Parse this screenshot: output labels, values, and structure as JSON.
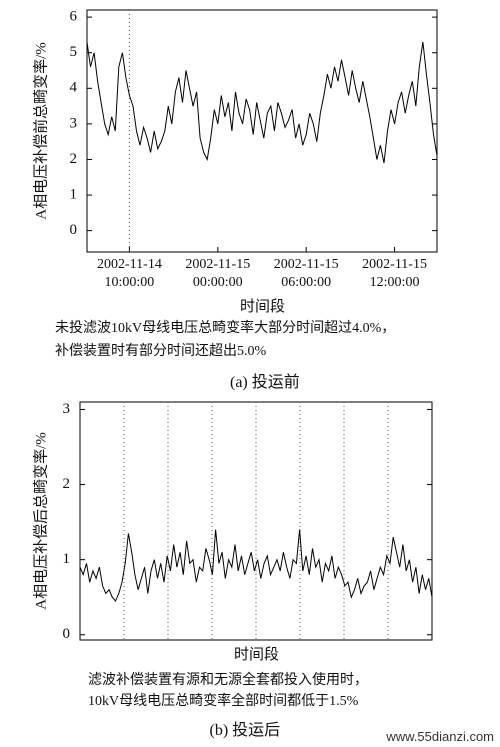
{
  "chart_data": [
    {
      "type": "line",
      "ylabel": "A相电压补偿前总畸变率/%",
      "xlabel": "时间段",
      "note": [
        "未投滤波10kV母线电压总畸变率大部分时间超过4.0%，",
        "补偿装置时有部分时间还超出5.0%"
      ],
      "caption": "(a) 投运前",
      "color": "#000000",
      "xlim": [
        0,
        99
      ],
      "ylim": [
        -0.6,
        6.2
      ],
      "yticks": [
        0,
        1,
        2,
        3,
        4,
        5,
        6
      ],
      "xticks": [
        {
          "value": 12,
          "label": "2002-11-14 10:00:00"
        },
        {
          "value": 37,
          "label": "2002-11-15 00:00:00"
        },
        {
          "value": 62,
          "label": "2002-11-15 06:00:00"
        },
        {
          "value": 87,
          "label": "2002-11-15 12:00:00"
        }
      ],
      "values": [
        5.3,
        4.6,
        5.0,
        4.2,
        3.6,
        3.0,
        2.7,
        3.2,
        2.8,
        4.6,
        5.0,
        4.3,
        3.8,
        3.5,
        2.8,
        2.4,
        2.9,
        2.6,
        2.2,
        2.8,
        2.3,
        2.5,
        2.8,
        3.5,
        3.0,
        3.9,
        4.3,
        3.6,
        4.5,
        4.0,
        3.5,
        3.9,
        2.6,
        2.2,
        2.0,
        2.6,
        3.4,
        3.0,
        3.8,
        3.2,
        3.6,
        2.8,
        3.9,
        3.3,
        3.0,
        3.7,
        3.4,
        2.7,
        3.6,
        3.1,
        2.6,
        3.3,
        3.5,
        2.8,
        3.6,
        3.3,
        2.9,
        3.1,
        3.4,
        2.6,
        3.0,
        2.4,
        2.7,
        3.3,
        3.0,
        2.5,
        3.3,
        3.8,
        4.4,
        4.0,
        4.6,
        4.2,
        4.8,
        4.3,
        3.8,
        4.5,
        4.0,
        3.6,
        4.2,
        3.7,
        3.2,
        2.6,
        2.0,
        2.4,
        1.9,
        2.8,
        3.4,
        3.0,
        3.6,
        3.9,
        3.3,
        3.8,
        4.2,
        3.5,
        4.6,
        5.3,
        4.4,
        3.6,
        2.7,
        2.1
      ]
    },
    {
      "type": "line",
      "ylabel": "A相电压补偿后总畸变率/%",
      "xlabel": "时间段",
      "note": [
        "滤波补偿装置有源和无源全套都投入使用时，",
        "10kV母线电压总畸变率全部时间都低于1.5%"
      ],
      "caption": "(b) 投运后",
      "color": "#000000",
      "xlim": [
        0,
        109
      ],
      "ylim": [
        -0.07,
        3.1
      ],
      "yticks": [
        0,
        1,
        2,
        3
      ],
      "values": [
        0.9,
        0.8,
        0.95,
        0.7,
        0.85,
        0.75,
        0.9,
        0.65,
        0.55,
        0.6,
        0.5,
        0.45,
        0.55,
        0.7,
        0.95,
        1.35,
        1.1,
        0.8,
        0.6,
        0.75,
        0.9,
        0.55,
        0.85,
        1.0,
        0.75,
        0.95,
        0.7,
        1.05,
        0.85,
        1.2,
        0.9,
        1.1,
        0.8,
        1.25,
        0.95,
        1.0,
        0.7,
        0.9,
        0.85,
        1.15,
        1.0,
        0.8,
        1.4,
        0.95,
        1.1,
        0.75,
        1.0,
        0.9,
        1.2,
        0.85,
        1.05,
        0.8,
        0.95,
        1.1,
        0.85,
        1.0,
        0.75,
        0.95,
        1.05,
        0.8,
        0.9,
        1.0,
        0.85,
        1.1,
        0.9,
        0.75,
        1.0,
        0.95,
        1.4,
        0.85,
        1.05,
        0.8,
        1.15,
        0.9,
        1.0,
        0.7,
        0.95,
        0.85,
        1.05,
        0.75,
        0.9,
        0.8,
        0.65,
        0.7,
        0.5,
        0.6,
        0.75,
        0.55,
        0.65,
        0.7,
        0.85,
        0.6,
        0.75,
        0.9,
        0.8,
        1.05,
        0.95,
        1.3,
        1.1,
        0.9,
        1.2,
        0.85,
        1.0,
        0.7,
        0.9,
        0.55,
        0.8,
        0.6,
        0.75,
        0.5
      ]
    }
  ],
  "watermark": "www.55dianzi.com"
}
